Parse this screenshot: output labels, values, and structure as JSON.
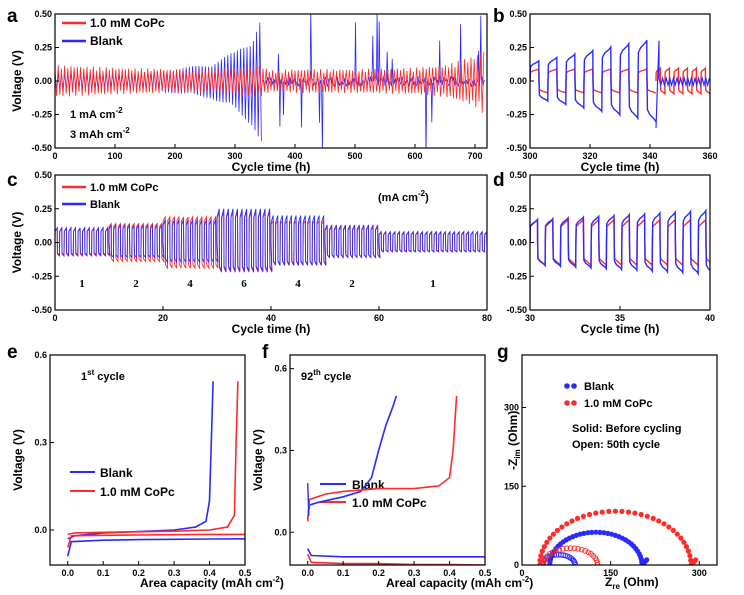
{
  "chart_data": [
    {
      "panel": "a",
      "type": "line",
      "xlabel": "Cycle time (h)",
      "ylabel": "Voltage (V)",
      "xlim": [
        0,
        720
      ],
      "ylim": [
        -0.5,
        0.5
      ],
      "xticks": [
        0,
        100,
        200,
        300,
        400,
        500,
        600,
        700
      ],
      "yticks": [
        -0.5,
        -0.25,
        0,
        0.25,
        0.5
      ],
      "series": [
        {
          "name": "1.0 mM CoPc",
          "color": "#ff2a2a",
          "envelope": {
            "t": [
              0,
              100,
              200,
              260,
              300,
              340,
              360,
              400,
              500,
              600,
              650,
              700,
              715
            ],
            "v": [
              0.12,
              0.1,
              0.09,
              0.09,
              0.1,
              0.12,
              0.08,
              0.09,
              0.09,
              0.1,
              0.12,
              0.19,
              0.25
            ]
          }
        },
        {
          "name": "Blank",
          "color": "#2a2aff",
          "envelope": {
            "t": [
              0,
              100,
              200,
              260,
              300,
              330,
              345
            ],
            "v": [
              0.07,
              0.05,
              0.09,
              0.13,
              0.22,
              0.34,
              0.5
            ]
          },
          "spikes_after_h": 345
        }
      ],
      "annotations": [
        "1 mA cm",
        "-2",
        "3 mAh cm",
        "-2"
      ]
    },
    {
      "panel": "b",
      "type": "line",
      "xlabel": "Cycle time (h)",
      "ylabel": "",
      "xlim": [
        300,
        360
      ],
      "ylim": [
        -0.5,
        0.5
      ],
      "xticks": [
        300,
        320,
        340,
        360
      ],
      "yticks": [
        -0.5,
        -0.25,
        0,
        0.25,
        0.5
      ],
      "series": [
        {
          "name": "1.0 mM CoPc",
          "color": "#ff2a2a",
          "amplitude": 0.09
        },
        {
          "name": "Blank",
          "color": "#2a2aff",
          "amplitude_range": [
            0.15,
            0.33
          ]
        }
      ]
    },
    {
      "panel": "c",
      "type": "line",
      "xlabel": "Cycle time (h)",
      "ylabel": "Voltage (V)",
      "xlim": [
        0,
        80
      ],
      "ylim": [
        -0.5,
        0.5
      ],
      "xticks": [
        0,
        20,
        40,
        60,
        80
      ],
      "yticks": [
        -0.5,
        -0.25,
        0,
        0.25,
        0.5
      ],
      "rate_unit": "(mA cm",
      "rate_unit_sup": "-2",
      "rate_unit_end": ")",
      "rate_steps": [
        {
          "label": "1",
          "start": 0,
          "end": 10,
          "copc": 0.1,
          "blank": 0.11
        },
        {
          "label": "2",
          "start": 10,
          "end": 20,
          "copc": 0.14,
          "blank": 0.13
        },
        {
          "label": "4",
          "start": 20,
          "end": 30,
          "copc": 0.19,
          "blank": 0.17
        },
        {
          "label": "6",
          "start": 30,
          "end": 40,
          "copc": 0.22,
          "blank": 0.25
        },
        {
          "label": "4",
          "start": 40,
          "end": 50,
          "copc": 0.16,
          "blank": 0.2
        },
        {
          "label": "2",
          "start": 50,
          "end": 60,
          "copc": 0.11,
          "blank": 0.13
        },
        {
          "label": "1",
          "start": 60,
          "end": 80,
          "copc": 0.07,
          "blank": 0.08
        }
      ],
      "series": [
        {
          "name": "1.0 mM CoPc",
          "color": "#ff2a2a"
        },
        {
          "name": "Blank",
          "color": "#2a2aff"
        }
      ]
    },
    {
      "panel": "d",
      "type": "line",
      "xlabel": "Cycle time (h)",
      "ylabel": "",
      "xlim": [
        30,
        40
      ],
      "ylim": [
        -0.5,
        0.5
      ],
      "xticks": [
        30,
        35,
        40
      ],
      "yticks": [
        -0.5,
        -0.25,
        0,
        0.25,
        0.5
      ],
      "series": [
        {
          "name": "1.0 mM CoPc",
          "color": "#ff2a2a",
          "amplitude": 0.17
        },
        {
          "name": "Blank",
          "color": "#2a2aff",
          "amplitude_range": [
            0.17,
            0.24
          ]
        }
      ]
    },
    {
      "panel": "e",
      "type": "line",
      "xlabel": "Area capacity (mAh cm",
      "xlabel_sup": "-2",
      "xlabel_end": ")",
      "ylabel": "Voltage (V)",
      "xlim": [
        -0.05,
        0.5
      ],
      "ylim": [
        -0.12,
        0.6
      ],
      "xticks": [
        0.0,
        0.1,
        0.2,
        0.3,
        0.4,
        0.5
      ],
      "yticks": [
        0.0,
        0.3,
        0.6
      ],
      "title": "1",
      "title_sup": "st",
      "title_end": " cycle",
      "series": [
        {
          "name": "Blank",
          "color": "#2a2aff",
          "charge": {
            "x": [
              0,
              0.02,
              0.1,
              0.2,
              0.3,
              0.36,
              0.39,
              0.4,
              0.405,
              0.41
            ],
            "y": [
              -0.03,
              -0.02,
              -0.01,
              -0.005,
              0.0,
              0.01,
              0.03,
              0.1,
              0.3,
              0.51
            ]
          },
          "discharge": {
            "x": [
              0,
              0.01,
              0.1,
              0.2,
              0.3,
              0.4,
              0.5
            ],
            "y": [
              -0.09,
              -0.04,
              -0.035,
              -0.033,
              -0.032,
              -0.031,
              -0.03
            ]
          }
        },
        {
          "name": "1.0 mM CoPc",
          "color": "#ff2a2a",
          "charge": {
            "x": [
              0,
              0.02,
              0.1,
              0.2,
              0.3,
              0.4,
              0.45,
              0.47,
              0.475,
              0.48
            ],
            "y": [
              -0.015,
              -0.01,
              -0.008,
              -0.006,
              -0.004,
              0.0,
              0.01,
              0.05,
              0.3,
              0.51
            ]
          },
          "discharge": {
            "x": [
              0,
              0.01,
              0.1,
              0.2,
              0.3,
              0.4,
              0.5
            ],
            "y": [
              -0.06,
              -0.02,
              -0.018,
              -0.017,
              -0.016,
              -0.015,
              -0.015
            ]
          }
        }
      ]
    },
    {
      "panel": "f",
      "type": "line",
      "xlabel": "Areal capacity (mAh cm",
      "xlabel_sup": "-2",
      "xlabel_end": ")",
      "ylabel": "Voltage (V)",
      "xlim": [
        -0.05,
        0.5
      ],
      "ylim": [
        -0.12,
        0.65
      ],
      "xticks": [
        0.0,
        0.1,
        0.2,
        0.3,
        0.4,
        0.5
      ],
      "yticks": [
        0.0,
        0.3,
        0.6
      ],
      "title": "92",
      "title_sup": "th",
      "title_end": " cycle",
      "series": [
        {
          "name": "Blank",
          "color": "#2a2aff",
          "charge": {
            "x": [
              0,
              0.005,
              0.03,
              0.1,
              0.15,
              0.18,
              0.2,
              0.22,
              0.24,
              0.25
            ],
            "y": [
              0.05,
              0.1,
              0.11,
              0.13,
              0.15,
              0.2,
              0.3,
              0.39,
              0.46,
              0.5
            ]
          },
          "discharge": {
            "x": [
              0,
              0.01,
              0.1,
              0.2,
              0.3,
              0.4,
              0.5
            ],
            "y": [
              -0.06,
              -0.085,
              -0.09,
              -0.09,
              -0.09,
              -0.09,
              -0.09
            ]
          }
        },
        {
          "name": "1.0 mM CoPc",
          "color": "#ff2a2a",
          "charge": {
            "x": [
              0,
              0.005,
              0.05,
              0.1,
              0.2,
              0.3,
              0.37,
              0.4,
              0.41,
              0.42
            ],
            "y": [
              0.04,
              0.12,
              0.14,
              0.15,
              0.16,
              0.16,
              0.17,
              0.2,
              0.3,
              0.5
            ]
          },
          "discharge": {
            "x": [
              0,
              0.01,
              0.1,
              0.2,
              0.3,
              0.4,
              0.5
            ],
            "y": [
              -0.08,
              -0.11,
              -0.115,
              -0.115,
              -0.118,
              -0.118,
              -0.12
            ]
          }
        }
      ]
    },
    {
      "panel": "g",
      "type": "scatter",
      "xlabel": "Z",
      "xlabel_sub": "re",
      "xlabel_end": " (Ohm)",
      "ylabel": "-Z",
      "ylabel_sub": "im",
      "ylabel_end": " (Ohm)",
      "xlim": [
        0,
        330
      ],
      "ylim": [
        0,
        400
      ],
      "xticks": [
        0,
        150,
        300
      ],
      "yticks": [
        0,
        150,
        300
      ],
      "notes": [
        "Solid: Before cycling",
        "Open: 50th cycle"
      ],
      "series": [
        {
          "name": "Blank",
          "color": "#2a2aff",
          "before": {
            "center": 125,
            "radius": 78,
            "tail_to": 140
          },
          "after": {
            "center": 62,
            "radius": 28
          }
        },
        {
          "name": "1.0 mM CoPc",
          "color": "#ff2a2a",
          "before": {
            "center": 158,
            "radius": 128,
            "tail_to": 318
          },
          "after": {
            "center": 82,
            "radius": 46
          }
        }
      ]
    }
  ]
}
